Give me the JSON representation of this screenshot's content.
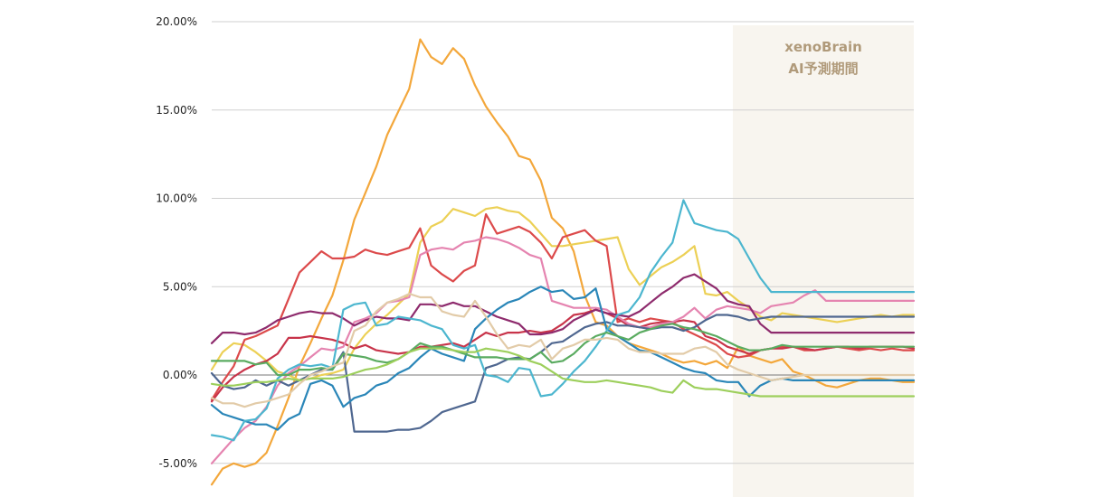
{
  "chart_data": {
    "type": "line",
    "title": "",
    "xlabel": "",
    "ylabel": "",
    "ylim": [
      -6.5,
      20.5
    ],
    "yticks": [
      {
        "value": 20,
        "label": "20.00%"
      },
      {
        "value": 15,
        "label": "15.00%"
      },
      {
        "value": 10,
        "label": "10.00%"
      },
      {
        "value": 5,
        "label": "5.00%"
      },
      {
        "value": 0,
        "label": "0.00%"
      },
      {
        "value": -5,
        "label": "-5.00%"
      }
    ],
    "x": [
      0,
      1,
      2,
      3,
      4,
      5,
      6,
      7,
      8,
      9,
      10,
      11,
      12,
      13,
      14,
      15,
      16,
      17,
      18,
      19,
      20,
      21,
      22,
      23,
      24,
      25,
      26,
      27,
      28,
      29,
      30,
      31,
      32,
      33,
      34,
      35,
      36,
      37,
      38,
      39,
      40,
      41,
      42,
      43,
      44,
      45,
      46,
      47,
      48,
      49,
      50,
      51,
      52,
      53,
      54,
      55,
      56,
      57,
      58,
      59,
      60,
      61,
      62,
      63,
      64
    ],
    "prediction_start_index": 48,
    "prediction_label_line1": "xenoBrain",
    "prediction_label_line2": "AI予測期間",
    "prediction_color": "#f8f5ef",
    "prediction_text_color": "#b09a7a",
    "series": [
      {
        "name": "orange",
        "color": "#f3a73b",
        "values": [
          -6.2,
          -5.3,
          -5.0,
          -5.2,
          -5.0,
          -4.4,
          -2.9,
          -1.3,
          0.5,
          1.8,
          3.2,
          4.5,
          6.5,
          8.8,
          10.3,
          11.8,
          13.6,
          14.9,
          16.2,
          19.0,
          18.0,
          17.6,
          18.5,
          17.9,
          16.4,
          15.2,
          14.3,
          13.5,
          12.4,
          12.2,
          11.0,
          8.9,
          8.3,
          7.0,
          4.5,
          3.0,
          2.8,
          2.2,
          1.8,
          1.6,
          1.4,
          1.2,
          0.9,
          0.7,
          0.8,
          0.6,
          0.8,
          0.4,
          1.6,
          1.1,
          0.9,
          0.7,
          0.9,
          0.2,
          0.0,
          -0.3,
          -0.6,
          -0.7,
          -0.5,
          -0.3,
          -0.2,
          -0.2,
          -0.3,
          -0.4,
          -0.4
        ]
      },
      {
        "name": "yellow",
        "color": "#ecd055",
        "values": [
          0.3,
          1.3,
          1.8,
          1.7,
          1.3,
          0.8,
          0.2,
          0.0,
          -0.3,
          -0.2,
          0.0,
          0.1,
          0.3,
          1.5,
          2.3,
          2.9,
          3.4,
          4.0,
          4.6,
          7.5,
          8.4,
          8.7,
          9.4,
          9.2,
          9.0,
          9.4,
          9.5,
          9.3,
          9.2,
          8.7,
          8.0,
          7.3,
          7.3,
          7.4,
          7.5,
          7.6,
          7.7,
          7.8,
          6.0,
          5.1,
          5.6,
          6.1,
          6.4,
          6.8,
          7.3,
          4.6,
          4.5,
          4.7,
          4.2,
          3.8,
          3.3,
          3.1,
          3.5,
          3.4,
          3.3,
          3.2,
          3.1,
          3.0,
          3.1,
          3.2,
          3.3,
          3.4,
          3.3,
          3.4,
          3.4
        ]
      },
      {
        "name": "red",
        "color": "#dc4a4b",
        "values": [
          -1.4,
          -0.4,
          0.5,
          2.0,
          2.2,
          2.5,
          2.8,
          4.3,
          5.8,
          6.4,
          7.0,
          6.6,
          6.6,
          6.7,
          7.1,
          6.9,
          6.8,
          7.0,
          7.2,
          8.3,
          6.2,
          5.7,
          5.3,
          5.9,
          6.2,
          9.1,
          8.0,
          8.2,
          8.4,
          8.1,
          7.5,
          6.6,
          7.8,
          8.0,
          8.2,
          7.6,
          7.3,
          3.0,
          3.2,
          3.0,
          3.2,
          3.1,
          3.0,
          2.6,
          2.3,
          2.0,
          1.7,
          1.2,
          1.0,
          1.1,
          1.4,
          1.5,
          1.6,
          1.6,
          1.4,
          1.4,
          1.5,
          1.6,
          1.5,
          1.4,
          1.5,
          1.4,
          1.5,
          1.4,
          1.4
        ]
      },
      {
        "name": "crimson",
        "color": "#c8344a",
        "values": [
          -1.5,
          -0.7,
          -0.1,
          0.3,
          0.6,
          0.8,
          1.2,
          2.1,
          2.1,
          2.2,
          2.1,
          2.0,
          1.8,
          1.5,
          1.7,
          1.4,
          1.3,
          1.2,
          1.3,
          1.6,
          1.6,
          1.7,
          1.8,
          1.6,
          2.0,
          2.4,
          2.2,
          2.4,
          2.4,
          2.5,
          2.4,
          2.5,
          2.9,
          3.4,
          3.5,
          3.7,
          3.5,
          3.2,
          2.8,
          2.7,
          2.9,
          3.0,
          3.0,
          3.1,
          3.0,
          2.2,
          2.0,
          1.6,
          1.4,
          1.2,
          1.4,
          1.5,
          1.5,
          1.6,
          1.5,
          1.4,
          1.5,
          1.6,
          1.6,
          1.5,
          1.6,
          1.6,
          1.6,
          1.6,
          1.5
        ]
      },
      {
        "name": "pink",
        "color": "#e584b0",
        "values": [
          -5.0,
          -4.3,
          -3.6,
          -3.0,
          -2.6,
          -1.8,
          -0.6,
          0.1,
          0.5,
          1.0,
          1.5,
          1.4,
          1.6,
          3.0,
          3.2,
          3.5,
          4.1,
          4.2,
          4.4,
          6.8,
          7.1,
          7.2,
          7.1,
          7.5,
          7.6,
          7.8,
          7.7,
          7.5,
          7.2,
          6.8,
          6.6,
          4.2,
          4.0,
          3.8,
          3.8,
          3.8,
          3.7,
          3.3,
          2.9,
          2.7,
          2.7,
          2.9,
          3.0,
          3.3,
          3.8,
          3.2,
          3.7,
          3.9,
          3.8,
          3.7,
          3.5,
          3.9,
          4.0,
          4.1,
          4.5,
          4.8,
          4.2,
          4.2,
          4.2,
          4.2,
          4.2,
          4.2,
          4.2,
          4.2,
          4.2
        ]
      },
      {
        "name": "purple",
        "color": "#8e2b6d",
        "values": [
          1.8,
          2.4,
          2.4,
          2.3,
          2.4,
          2.7,
          3.1,
          3.3,
          3.5,
          3.6,
          3.5,
          3.5,
          3.2,
          2.8,
          3.1,
          3.3,
          3.2,
          3.2,
          3.1,
          4.0,
          4.0,
          3.9,
          4.1,
          3.9,
          3.9,
          3.6,
          3.3,
          3.1,
          2.9,
          2.3,
          2.3,
          2.4,
          2.6,
          3.1,
          3.4,
          3.7,
          3.5,
          3.4,
          3.3,
          3.6,
          4.1,
          4.6,
          5.0,
          5.5,
          5.7,
          5.3,
          4.9,
          4.2,
          4.0,
          3.9,
          2.9,
          2.4,
          2.4,
          2.4,
          2.4,
          2.4,
          2.4,
          2.4,
          2.4,
          2.4,
          2.4,
          2.4,
          2.4,
          2.4,
          2.4
        ]
      },
      {
        "name": "navy",
        "color": "#4f6790",
        "values": [
          0.1,
          -0.6,
          -0.8,
          -0.7,
          -0.3,
          -0.6,
          -0.3,
          -0.6,
          -0.3,
          0.0,
          0.3,
          0.3,
          1.3,
          -3.2,
          -3.2,
          -3.2,
          -3.2,
          -3.1,
          -3.1,
          -3.0,
          -2.6,
          -2.1,
          -1.9,
          -1.7,
          -1.5,
          0.4,
          0.6,
          0.9,
          1.0,
          0.9,
          1.3,
          1.8,
          1.9,
          2.3,
          2.7,
          2.9,
          3.0,
          2.8,
          2.8,
          2.7,
          2.6,
          2.7,
          2.7,
          2.5,
          2.7,
          3.1,
          3.4,
          3.4,
          3.3,
          3.1,
          3.2,
          3.3,
          3.3,
          3.3,
          3.3,
          3.3,
          3.3,
          3.3,
          3.3,
          3.3,
          3.3,
          3.3,
          3.3,
          3.3,
          3.3
        ]
      },
      {
        "name": "blue",
        "color": "#2a86b8",
        "values": [
          -1.7,
          -2.2,
          -2.4,
          -2.6,
          -2.8,
          -2.8,
          -3.1,
          -2.5,
          -2.2,
          -0.5,
          -0.3,
          -0.6,
          -1.8,
          -1.3,
          -1.1,
          -0.6,
          -0.4,
          0.1,
          0.4,
          1.0,
          1.5,
          1.2,
          1.0,
          0.8,
          2.6,
          3.2,
          3.7,
          4.1,
          4.3,
          4.7,
          5.0,
          4.7,
          4.8,
          4.3,
          4.4,
          4.9,
          2.6,
          2.2,
          1.8,
          1.4,
          1.3,
          1.0,
          0.7,
          0.4,
          0.2,
          0.1,
          -0.3,
          -0.4,
          -0.4,
          -1.2,
          -0.6,
          -0.3,
          -0.2,
          -0.3,
          -0.3,
          -0.3,
          -0.3,
          -0.3,
          -0.3,
          -0.3,
          -0.3,
          -0.3,
          -0.3,
          -0.3,
          -0.3
        ]
      },
      {
        "name": "cyan",
        "color": "#4cb6cf",
        "values": [
          -3.4,
          -3.5,
          -3.7,
          -2.6,
          -2.5,
          -1.9,
          -0.2,
          0.3,
          0.6,
          0.5,
          0.6,
          0.4,
          3.7,
          4.0,
          4.1,
          2.8,
          2.9,
          3.3,
          3.2,
          3.1,
          2.8,
          2.6,
          1.7,
          1.5,
          1.7,
          0.0,
          -0.1,
          -0.4,
          0.4,
          0.3,
          -1.2,
          -1.1,
          -0.5,
          0.2,
          0.8,
          1.6,
          2.5,
          3.4,
          3.6,
          4.4,
          5.8,
          6.7,
          7.5,
          9.9,
          8.6,
          8.4,
          8.2,
          8.1,
          7.7,
          6.6,
          5.5,
          4.7,
          4.7,
          4.7,
          4.7,
          4.7,
          4.7,
          4.7,
          4.7,
          4.7,
          4.7,
          4.7,
          4.7,
          4.7,
          4.7
        ]
      },
      {
        "name": "green",
        "color": "#5aab60",
        "values": [
          0.8,
          0.8,
          0.8,
          0.8,
          0.6,
          0.7,
          0.0,
          0.0,
          0.3,
          0.3,
          0.4,
          0.3,
          1.2,
          1.1,
          1.0,
          0.8,
          0.7,
          0.9,
          1.3,
          1.8,
          1.6,
          1.6,
          1.4,
          1.2,
          1.0,
          1.0,
          1.0,
          0.9,
          0.9,
          0.9,
          1.3,
          0.7,
          0.8,
          1.2,
          1.8,
          2.2,
          2.4,
          2.2,
          2.0,
          2.4,
          2.6,
          2.8,
          2.9,
          2.7,
          2.6,
          2.4,
          2.2,
          1.9,
          1.6,
          1.4,
          1.4,
          1.5,
          1.7,
          1.6,
          1.6,
          1.6,
          1.6,
          1.6,
          1.6,
          1.6,
          1.6,
          1.6,
          1.6,
          1.6,
          1.6
        ]
      },
      {
        "name": "lime",
        "color": "#9dcf5c",
        "values": [
          -0.5,
          -0.6,
          -0.6,
          -0.5,
          -0.4,
          -0.4,
          -0.3,
          -0.2,
          -0.3,
          -0.2,
          -0.2,
          -0.2,
          -0.1,
          0.1,
          0.3,
          0.4,
          0.6,
          0.9,
          1.3,
          1.5,
          1.5,
          1.5,
          1.4,
          1.3,
          1.3,
          1.5,
          1.4,
          1.3,
          1.1,
          0.8,
          0.6,
          0.2,
          -0.2,
          -0.3,
          -0.4,
          -0.4,
          -0.3,
          -0.4,
          -0.5,
          -0.6,
          -0.7,
          -0.9,
          -1.0,
          -0.3,
          -0.7,
          -0.8,
          -0.8,
          -0.9,
          -1.0,
          -1.1,
          -1.2,
          -1.2,
          -1.2,
          -1.2,
          -1.2,
          -1.2,
          -1.2,
          -1.2,
          -1.2,
          -1.2,
          -1.2,
          -1.2,
          -1.2,
          -1.2,
          -1.2
        ]
      },
      {
        "name": "beige",
        "color": "#e2cba8",
        "values": [
          -1.3,
          -1.6,
          -1.6,
          -1.8,
          -1.6,
          -1.5,
          -1.3,
          -1.1,
          -0.5,
          0.0,
          0.2,
          0.5,
          0.7,
          2.5,
          2.8,
          3.6,
          4.1,
          4.3,
          4.6,
          4.4,
          4.4,
          3.6,
          3.4,
          3.3,
          4.2,
          3.3,
          2.3,
          1.5,
          1.7,
          1.6,
          2.0,
          0.9,
          1.5,
          1.7,
          2.0,
          2.0,
          2.1,
          2.0,
          1.5,
          1.3,
          1.3,
          1.2,
          1.2,
          1.2,
          1.5,
          1.6,
          1.3,
          0.6,
          0.3,
          0.1,
          -0.1,
          -0.3,
          -0.2,
          -0.1,
          0.0,
          0.0,
          0.0,
          0.0,
          0.0,
          0.0,
          0.0,
          0.0,
          0.0,
          0.0,
          0.0
        ]
      }
    ]
  }
}
